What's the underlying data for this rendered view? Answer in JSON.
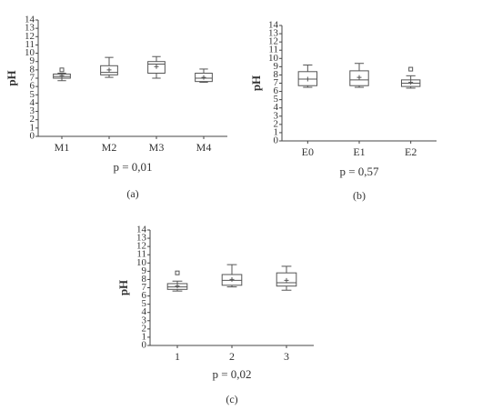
{
  "chart_data": [
    {
      "type": "box",
      "ylabel": "pH",
      "annotation": "p = 0,01",
      "caption": "(a)",
      "categories": [
        "M1",
        "M2",
        "M3",
        "M4"
      ],
      "boxes": [
        {
          "whislo": 6.7,
          "q1": 7.0,
          "med": 7.2,
          "q3": 7.5,
          "whishi": 7.6,
          "mean": 7.3,
          "fliers": [
            8.0
          ]
        },
        {
          "whislo": 7.1,
          "q1": 7.4,
          "med": 7.7,
          "q3": 8.5,
          "whishi": 9.5,
          "mean": 8.0,
          "fliers": []
        },
        {
          "whislo": 7.0,
          "q1": 7.6,
          "med": 8.7,
          "q3": 9.0,
          "whishi": 9.6,
          "mean": 8.4,
          "fliers": []
        },
        {
          "whislo": 6.5,
          "q1": 6.6,
          "med": 7.0,
          "q3": 7.6,
          "whishi": 8.1,
          "mean": 7.1,
          "fliers": []
        }
      ],
      "color": "#555555",
      "ylim": [
        0,
        14
      ],
      "yticks": [
        0,
        1,
        2,
        3,
        4,
        5,
        6,
        7,
        8,
        9,
        10,
        11,
        12,
        13,
        14
      ]
    },
    {
      "type": "box",
      "ylabel": "pH",
      "annotation": "p = 0,57",
      "caption": "(b)",
      "categories": [
        "E0",
        "E1",
        "E2"
      ],
      "boxes": [
        {
          "whislo": 6.5,
          "q1": 6.7,
          "med": 7.5,
          "q3": 8.4,
          "whishi": 9.2,
          "mean": 7.5,
          "fliers": []
        },
        {
          "whislo": 6.5,
          "q1": 6.7,
          "med": 7.4,
          "q3": 8.5,
          "whishi": 9.4,
          "mean": 7.7,
          "fliers": []
        },
        {
          "whislo": 6.4,
          "q1": 6.6,
          "med": 7.0,
          "q3": 7.4,
          "whishi": 7.9,
          "mean": 7.1,
          "fliers": [
            8.7
          ]
        }
      ],
      "color": "#555555",
      "ylim": [
        0,
        14
      ],
      "yticks": [
        0,
        1,
        2,
        3,
        4,
        5,
        6,
        7,
        8,
        9,
        10,
        11,
        12,
        13,
        14
      ]
    },
    {
      "type": "box",
      "ylabel": "pH",
      "annotation": "p = 0,02",
      "caption": "(c)",
      "categories": [
        "1",
        "2",
        "3"
      ],
      "boxes": [
        {
          "whislo": 6.6,
          "q1": 6.8,
          "med": 7.1,
          "q3": 7.5,
          "whishi": 7.8,
          "mean": 7.2,
          "fliers": [
            8.8
          ]
        },
        {
          "whislo": 7.1,
          "q1": 7.3,
          "med": 7.9,
          "q3": 8.6,
          "whishi": 9.8,
          "mean": 8.0,
          "fliers": []
        },
        {
          "whislo": 6.7,
          "q1": 7.2,
          "med": 7.6,
          "q3": 8.8,
          "whishi": 9.6,
          "mean": 7.9,
          "fliers": []
        }
      ],
      "color": "#555555",
      "ylim": [
        0,
        14
      ],
      "yticks": [
        0,
        1,
        2,
        3,
        4,
        5,
        6,
        7,
        8,
        9,
        10,
        11,
        12,
        13,
        14
      ]
    }
  ]
}
